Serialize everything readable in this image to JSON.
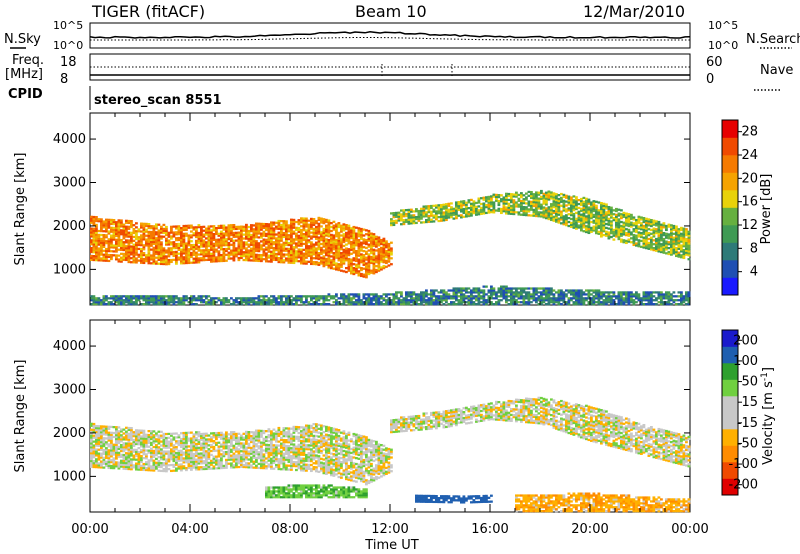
{
  "header": {
    "station": "TIGER (fitACF)",
    "beam": "Beam 10",
    "date": "12/Mar/2010"
  },
  "params": {
    "nsky_label": "N.Sky",
    "nsearch_label": "N.Search",
    "nsky_ticks": [
      "10^5",
      "10^0"
    ],
    "nsearch_ticks": [
      "10^5",
      "10^0"
    ],
    "freq_label": "Freq.",
    "freq_unit": "[MHz]",
    "freq_ticks": [
      "18",
      "8"
    ],
    "nave_label": "Nave",
    "nave_ticks": [
      "60",
      "0"
    ],
    "cpid_label": "CPID",
    "cpid_value": "stereo_scan 8551"
  },
  "colors": {
    "power_scale": [
      "#1a1aff",
      "#1f4fb3",
      "#2e7a78",
      "#3f9a54",
      "#66b040",
      "#e8d20a",
      "#f5a300",
      "#f57a00",
      "#f04a00",
      "#e60000"
    ],
    "velocity_scale": [
      "#e00000",
      "#f04a00",
      "#ff8c00",
      "#ffb000",
      "#c8c8c8",
      "#c8c8c8",
      "#70d040",
      "#2ea02e",
      "#1f5fb0",
      "#1a1acc"
    ],
    "nsky_line": "#000000",
    "nsearch_line": "#000000"
  },
  "chart_data": [
    {
      "type": "heatmap",
      "title": "Power",
      "xlabel": "",
      "ylabel": "Slant Range [km]",
      "xlim": [
        "00:00",
        "24:00"
      ],
      "ylim": [
        180,
        4600
      ],
      "x_ticks": [
        "00:00",
        "04:00",
        "08:00",
        "12:00",
        "16:00",
        "20:00",
        "00:00"
      ],
      "y_ticks": [
        1000,
        2000,
        3000,
        4000
      ],
      "colorbar": {
        "label": "Power [dB]",
        "ticks": [
          4,
          8,
          12,
          16,
          20,
          24,
          28
        ],
        "range": [
          0,
          30
        ]
      },
      "echo_bands": [
        {
          "t": [
            0,
            3,
            6,
            9,
            11,
            12
          ],
          "r_low": [
            1200,
            1100,
            1200,
            1100,
            800,
            1100
          ],
          "r_high": [
            2200,
            2000,
            2000,
            2200,
            1900,
            1600
          ],
          "value": 22
        },
        {
          "t": [
            12,
            14,
            16,
            18,
            20,
            22,
            24
          ],
          "r_low": [
            2000,
            2100,
            2300,
            2200,
            1800,
            1500,
            1200
          ],
          "r_high": [
            2300,
            2500,
            2700,
            2800,
            2600,
            2200,
            1900
          ],
          "value": 14
        },
        {
          "t": [
            0,
            6,
            12,
            16,
            20,
            24
          ],
          "r_low": [
            180,
            180,
            180,
            180,
            180,
            180
          ],
          "r_high": [
            400,
            350,
            450,
            600,
            500,
            450
          ],
          "value": 8
        }
      ]
    },
    {
      "type": "heatmap",
      "title": "Velocity",
      "xlabel": "Time UT",
      "ylabel": "Slant Range [km]",
      "xlim": [
        "00:00",
        "24:00"
      ],
      "ylim": [
        180,
        4600
      ],
      "x_ticks": [
        "00:00",
        "04:00",
        "08:00",
        "12:00",
        "16:00",
        "20:00",
        "00:00"
      ],
      "y_ticks": [
        1000,
        2000,
        3000,
        4000
      ],
      "colorbar": {
        "label": "Velocity [m s^-1]",
        "ticks": [
          200,
          100,
          50,
          15,
          -15,
          -50,
          -100,
          -200
        ],
        "range": [
          -250,
          250
        ]
      },
      "echo_bands": [
        {
          "t": [
            0,
            3,
            6,
            9,
            11,
            12
          ],
          "r_low": [
            1200,
            1100,
            1200,
            1100,
            800,
            1100
          ],
          "r_high": [
            2200,
            2000,
            2000,
            2200,
            1900,
            1600
          ],
          "value": 0
        },
        {
          "t": [
            12,
            14,
            16,
            18,
            20,
            22,
            24
          ],
          "r_low": [
            2000,
            2100,
            2300,
            2200,
            1800,
            1500,
            1200
          ],
          "r_high": [
            2300,
            2500,
            2700,
            2800,
            2600,
            2200,
            1900
          ],
          "value": 0
        },
        {
          "t": [
            7,
            9,
            11
          ],
          "r_low": [
            500,
            500,
            500
          ],
          "r_high": [
            750,
            800,
            700
          ],
          "value": 40
        },
        {
          "t": [
            13,
            15,
            16
          ],
          "r_low": [
            400,
            380,
            400
          ],
          "r_high": [
            550,
            520,
            550
          ],
          "value": 150
        },
        {
          "t": [
            17,
            20,
            24
          ],
          "r_low": [
            180,
            180,
            180
          ],
          "r_high": [
            550,
            600,
            450
          ],
          "value": -40
        }
      ]
    }
  ]
}
